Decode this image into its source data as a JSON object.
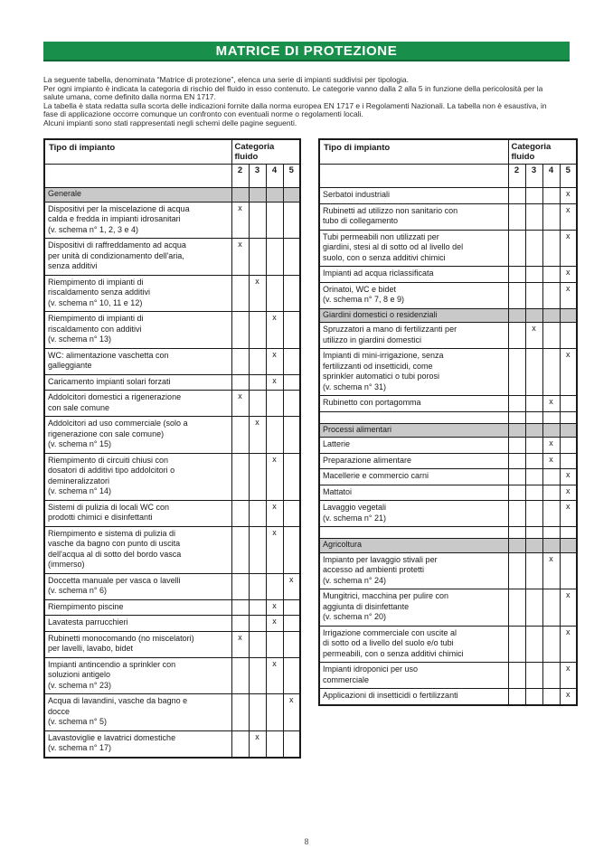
{
  "banner": {
    "title": "MATRICE DI PROTEZIONE"
  },
  "intro_lines": [
    "La seguente tabella, denominata “Matrice di protezione”, elenca una serie di impianti suddivisi per tipologia.",
    "Per ogni impianto è indicata la categoria di rischio del fluido in esso contenuto. Le categorie vanno dalla 2 alla 5 in funzione della pericolosità per la",
    "salute umana, come definito dalla norma EN 1717.",
    "La tabella è stata redatta sulla scorta delle indicazioni fornite dalla norma europea EN 1717 e i Regolamenti Nazionali. La tabella non è esaustiva, in",
    "fase di applicazione occorre comunque un confronto con eventuali norme o regolamenti locali.",
    "Alcuni impianti sono stati rappresentati negli schemi delle pagine seguenti."
  ],
  "table_header": {
    "type_label": "Tipo di impianto",
    "category_label": "Categoria\nfluido",
    "cols": [
      "2",
      "3",
      "4",
      "5"
    ]
  },
  "mark_symbol": "x",
  "left_table_rows": [
    {
      "kind": "section",
      "label": "Generale",
      "cat": null
    },
    {
      "kind": "item",
      "label": "Dispositivi per la miscelazione di acqua\ncalda e fredda in impianti idrosanitari\n(v. schema n° 1, 2, 3 e 4)",
      "cat": "2"
    },
    {
      "kind": "item",
      "label": "Dispositivi di raffreddamento ad acqua\nper unità di condizionamento dell'aria,\nsenza additivi",
      "cat": "2"
    },
    {
      "kind": "item",
      "label": "Riempimento di impianti di\nriscaldamento senza additivi\n(v. schema n° 10, 11 e 12)",
      "cat": "3"
    },
    {
      "kind": "item",
      "label": "Riempimento di impianti di\nriscaldamento con additivi\n(v. schema n° 13)",
      "cat": "4"
    },
    {
      "kind": "item",
      "label": "WC: alimentazione vaschetta con\ngalleggiante",
      "cat": "4"
    },
    {
      "kind": "item",
      "label": "Caricamento impianti solari forzati",
      "cat": "4"
    },
    {
      "kind": "item",
      "label": "Addolcitori domestici a rigenerazione\ncon sale comune",
      "cat": "2"
    },
    {
      "kind": "item",
      "label": "Addolcitori ad uso commerciale (solo a\nrigenerazione con sale comune)\n(v. schema n° 15)",
      "cat": "3"
    },
    {
      "kind": "item",
      "label": "Riempimento di circuiti chiusi con\ndosatori di additivi tipo addolcitori o\ndemineralizzatori\n(v. schema n° 14)",
      "cat": "4"
    },
    {
      "kind": "item",
      "label": "Sistemi di pulizia di locali WC con\nprodotti chimici e disinfettanti",
      "cat": "4"
    },
    {
      "kind": "item",
      "label": "Riempimento e sistema di pulizia di\nvasche da bagno con punto di uscita\ndell'acqua al di sotto del bordo vasca\n(immerso)",
      "cat": "4"
    },
    {
      "kind": "item",
      "label": "Doccetta manuale per vasca o lavelli\n(v. schema n° 6)",
      "cat": "5"
    },
    {
      "kind": "item",
      "label": "Riempimento piscine",
      "cat": "4"
    },
    {
      "kind": "item",
      "label": "Lavatesta parrucchieri",
      "cat": "4"
    },
    {
      "kind": "item",
      "label": "Rubinetti monocomando (no miscelatori)\nper lavelli, lavabo, bidet",
      "cat": "2"
    },
    {
      "kind": "item",
      "label": "Impianti antincendio a sprinkler con\nsoluzioni antigelo\n(v. schema n° 23)",
      "cat": "4"
    },
    {
      "kind": "item",
      "label": "Acqua di lavandini, vasche da bagno e\ndocce\n(v. schema n° 5)",
      "cat": "5"
    },
    {
      "kind": "item",
      "label": "Lavastoviglie e lavatrici domestiche\n(v. schema n° 17)",
      "cat": "3"
    }
  ],
  "right_table_rows": [
    {
      "kind": "item",
      "label": "Serbatoi industriali",
      "cat": "5"
    },
    {
      "kind": "item",
      "label": "Rubinetti ad utilizzo non sanitario con\ntubo di collegamento",
      "cat": "5"
    },
    {
      "kind": "item",
      "label": "Tubi permeabili non utilizzati per\ngiardini, stesi al di sotto od al livello del\nsuolo, con o senza additivi chimici",
      "cat": "5"
    },
    {
      "kind": "item",
      "label": "Impianti ad acqua riclassificata",
      "cat": "5"
    },
    {
      "kind": "item",
      "label": "Orinatoi, WC e bidet\n(v. schema n° 7, 8 e 9)",
      "cat": "5"
    },
    {
      "kind": "section",
      "label": "Giardini domestici o residenziali",
      "cat": null
    },
    {
      "kind": "item",
      "label": "Spruzzatori a mano di fertilizzanti per\nutilizzo in giardini domestici",
      "cat": "3"
    },
    {
      "kind": "item",
      "label": "Impianti di mini-irrigazione, senza\nfertilizzanti od insetticidi, come\nsprinkler automatici o tubi porosi\n(v. schema n° 31)",
      "cat": "5"
    },
    {
      "kind": "item",
      "label": "Rubinetto con portagomma",
      "cat": "4"
    },
    {
      "kind": "empty",
      "label": "",
      "cat": null
    },
    {
      "kind": "section",
      "label": "Processi alimentari",
      "cat": null
    },
    {
      "kind": "item",
      "label": "Latterie",
      "cat": "4"
    },
    {
      "kind": "item",
      "label": "Preparazione alimentare",
      "cat": "4"
    },
    {
      "kind": "item",
      "label": "Macellerie e commercio carni",
      "cat": "5"
    },
    {
      "kind": "item",
      "label": "Mattatoi",
      "cat": "5"
    },
    {
      "kind": "item",
      "label": "Lavaggio vegetali\n(v. schema n° 21)",
      "cat": "5"
    },
    {
      "kind": "empty",
      "label": "",
      "cat": null
    },
    {
      "kind": "section",
      "label": "Agricoltura",
      "cat": null
    },
    {
      "kind": "item",
      "label": "Impianto per lavaggio stivali per\naccesso ad ambienti protetti\n(v. schema n° 24)",
      "cat": "4"
    },
    {
      "kind": "item",
      "label": "Mungitrici, macchina per pulire con\naggiunta di disinfettante\n(v. schema n° 20)",
      "cat": "5"
    },
    {
      "kind": "item",
      "label": "Irrigazione commerciale con uscite al\ndi sotto od a livello del suolo e/o tubi\npermeabili, con o senza additivi chimici",
      "cat": "5"
    },
    {
      "kind": "item",
      "label": "Impianti idroponici per uso\ncommerciale",
      "cat": "5"
    },
    {
      "kind": "item",
      "label": "Applicazioni di insetticidi o fertilizzanti",
      "cat": "5"
    }
  ],
  "footer": {
    "page_number": "8"
  },
  "colors": {
    "banner_green": "#18904b",
    "banner_green_dark": "#0c6634",
    "section_gray": "#c9c9c9"
  }
}
